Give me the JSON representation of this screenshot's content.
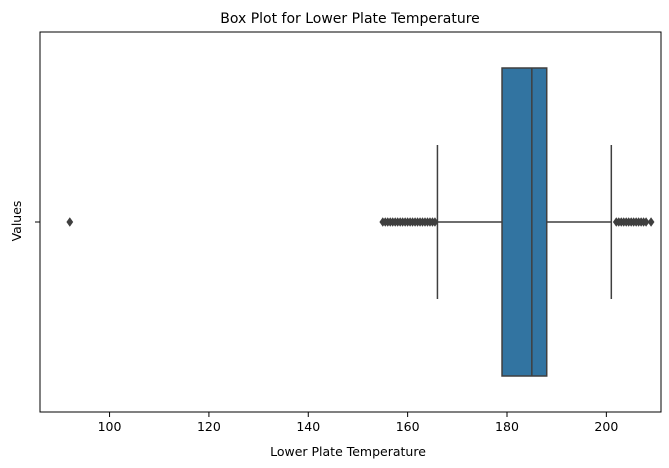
{
  "chart_data": {
    "type": "box",
    "orientation": "horizontal",
    "title": "Box Plot for Lower Plate Temperature",
    "xlabel": "Lower Plate Temperature",
    "ylabel": "Values",
    "xlim": [
      86,
      211
    ],
    "xticks": [
      100,
      120,
      140,
      160,
      180,
      200
    ],
    "ytick_labels": [
      ""
    ],
    "grid": false,
    "box": {
      "whisker_low": 166,
      "q1": 179,
      "median": 185,
      "q3": 188,
      "whisker_high": 201,
      "outliers": [
        92,
        155,
        155.5,
        156,
        156.5,
        157,
        157.5,
        158,
        158.5,
        159,
        159.5,
        160,
        160.5,
        161,
        161.5,
        162,
        162.5,
        163,
        163.5,
        164,
        164.5,
        165,
        165.5,
        202,
        202.5,
        203,
        203.5,
        204,
        204.5,
        205,
        205.5,
        206,
        206.5,
        207,
        207.5,
        208,
        209
      ]
    },
    "colors": {
      "box_fill": "#3274a1",
      "line": "#3f3f3f",
      "outlier": "#3f3f3f"
    }
  }
}
